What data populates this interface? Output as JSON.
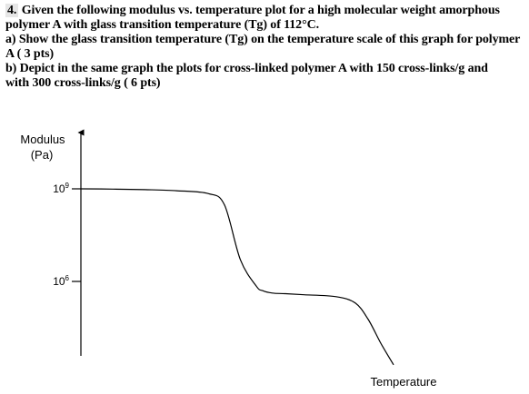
{
  "question": {
    "number": "4.",
    "line1": "Given the following modulus vs. temperature plot for a high molecular weight amorphous",
    "line2": "polymer A with glass transition temperature (Tg) of 112°C.",
    "part_a_1": "a) Show the glass transition temperature (Tg) on the temperature scale of this graph for polymer",
    "part_a_2": "A ( 3 pts)",
    "part_b_1": "b) Depict in the same graph the plots for cross-linked polymer A with 150 cross-links/g and",
    "part_b_2": "with 300 cross-links/g ( 6 pts)"
  },
  "chart_data": {
    "type": "line",
    "title": "",
    "ylabel_line1": "Modulus",
    "ylabel_line2": "(Pa)",
    "xlabel": "Temperature",
    "y_scale": "log",
    "y_ticks": [
      {
        "label_base": "10",
        "label_exp": "9",
        "value": 1000000000
      },
      {
        "label_base": "10",
        "label_exp": "6",
        "value": 1000000
      }
    ],
    "ylim": [
      1000,
      100000000000
    ],
    "x_ticks": [],
    "grid": false,
    "series": [
      {
        "stroke": "#000000",
        "x": [
          0,
          10,
          20,
          30,
          40,
          45,
          50,
          55,
          57,
          60,
          64,
          70,
          80,
          86,
          90,
          94,
          98
        ],
        "y": [
          1000000000,
          980000000,
          940000000,
          870000000,
          700000000,
          300000000,
          5000000,
          700000,
          500000,
          420000,
          400000,
          370000,
          320000,
          200000,
          60000,
          10000,
          2000
        ]
      }
    ],
    "xlim": [
      0,
      100
    ]
  }
}
